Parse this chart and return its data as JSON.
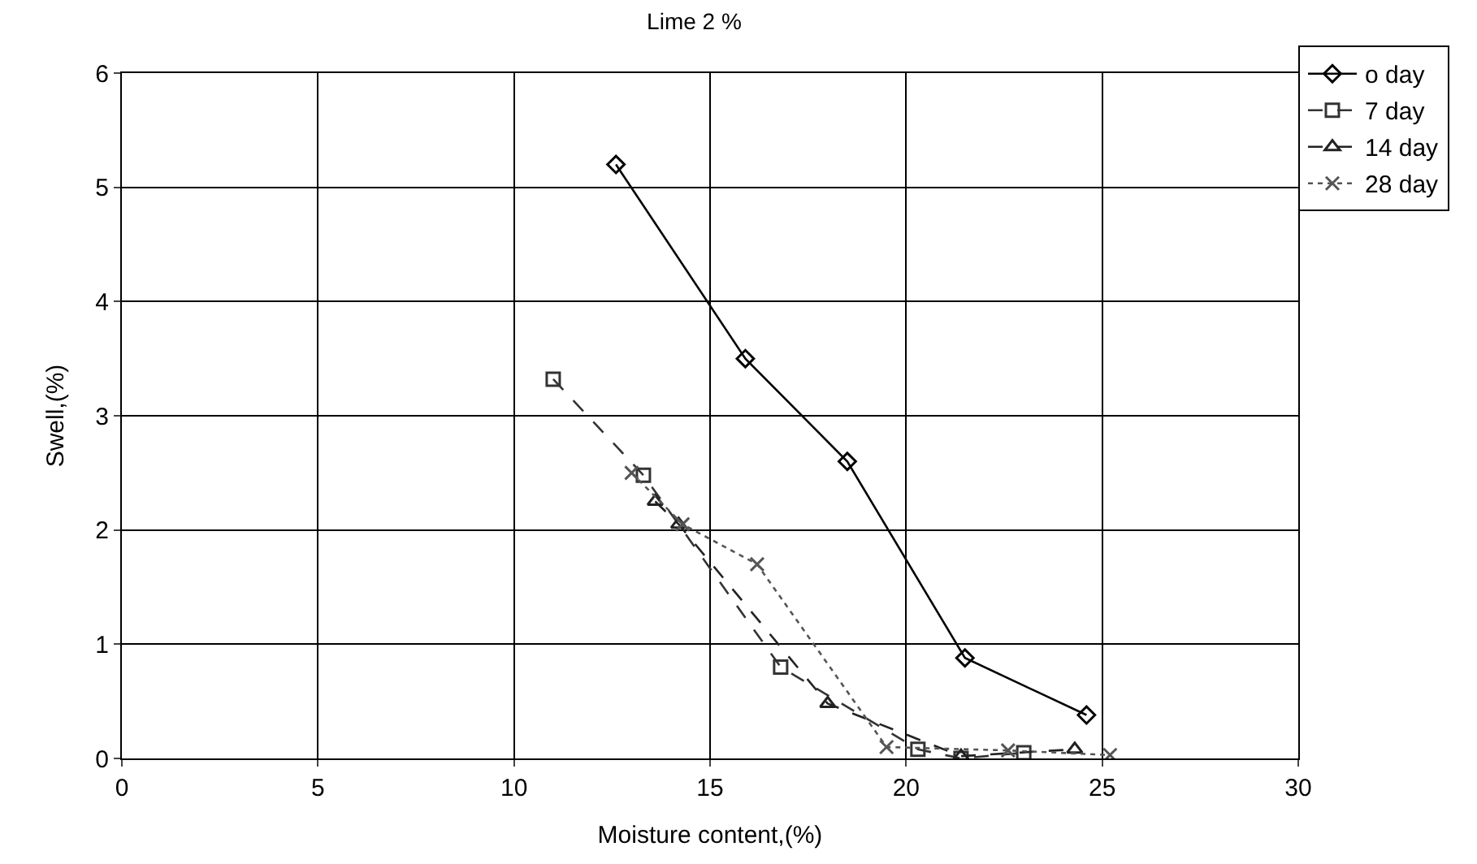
{
  "chart_data": {
    "type": "line",
    "title": "Lime 2 %",
    "xlabel": "Moisture content,(%)",
    "ylabel": "Swell,(%)",
    "xlim": [
      0,
      30
    ],
    "xticks": [
      0,
      5,
      10,
      15,
      20,
      25,
      30
    ],
    "ylim": [
      0,
      6
    ],
    "yticks": [
      0,
      1,
      2,
      3,
      4,
      5,
      6
    ],
    "grid": true,
    "legend": "top right",
    "series": [
      {
        "name": "o day",
        "color": "#000000",
        "marker": "diamond",
        "line_style": "solid",
        "x": [
          12.6,
          15.9,
          18.5,
          21.5,
          24.6
        ],
        "values": [
          5.2,
          3.5,
          2.6,
          0.88,
          0.38
        ]
      },
      {
        "name": "7 day",
        "color": "#333333",
        "marker": "square",
        "line_style": "dashed",
        "x": [
          11.0,
          13.3,
          16.8,
          20.3,
          21.4,
          23.0
        ],
        "values": [
          3.32,
          2.48,
          0.8,
          0.08,
          0.0,
          0.05
        ]
      },
      {
        "name": "14 day",
        "color": "#222222",
        "marker": "triangle",
        "line_style": "dashed",
        "x": [
          13.6,
          14.2,
          18.0,
          21.4,
          24.3
        ],
        "values": [
          2.25,
          2.05,
          0.48,
          0.02,
          0.08
        ]
      },
      {
        "name": "28 day",
        "color": "#555555",
        "marker": "cross",
        "line_style": "dotted",
        "x": [
          13.0,
          14.3,
          16.2,
          19.5,
          22.6,
          25.2
        ],
        "values": [
          2.5,
          2.05,
          1.7,
          0.1,
          0.07,
          0.03
        ]
      }
    ]
  }
}
